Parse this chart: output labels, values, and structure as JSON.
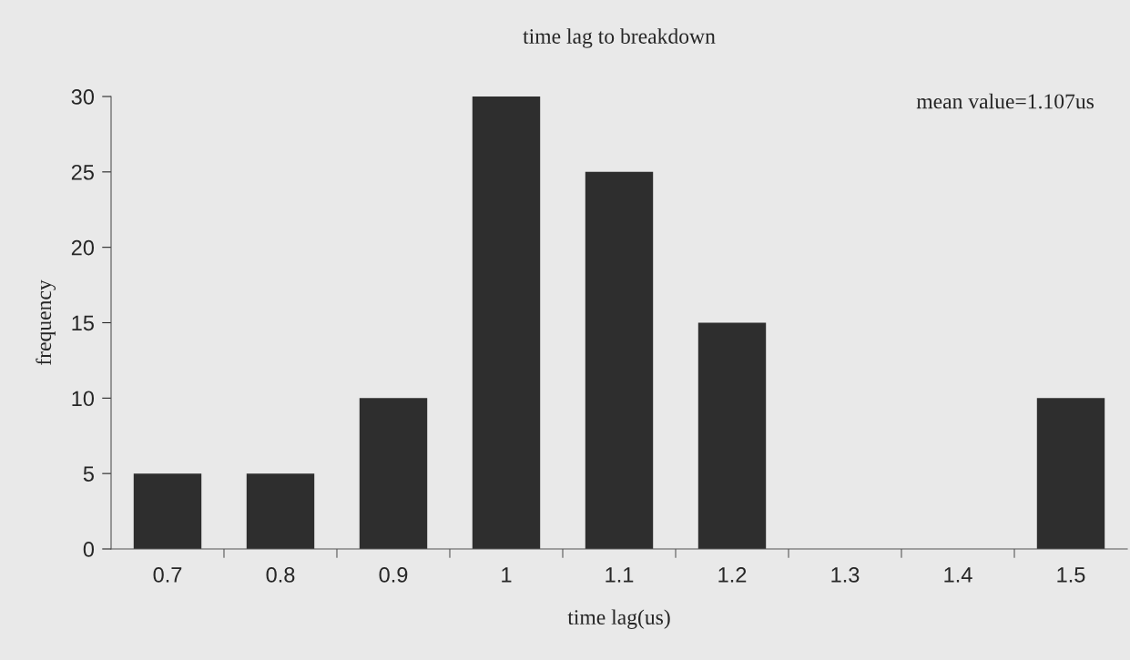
{
  "chart_data": {
    "type": "bar",
    "title": "time lag to breakdown",
    "xlabel": "time lag(us)",
    "ylabel": "frequency",
    "categories": [
      "0.7",
      "0.8",
      "0.9",
      "1",
      "1.1",
      "1.2",
      "1.3",
      "1.4",
      "1.5"
    ],
    "values": [
      5,
      5,
      10,
      30,
      25,
      15,
      0,
      0,
      10
    ],
    "color": "#2e2e2e",
    "ylim": [
      0,
      30
    ],
    "yticks": [
      0,
      5,
      10,
      15,
      20,
      25,
      30
    ],
    "grid": false,
    "legend": false,
    "annotations": [
      "mean value=1.107us"
    ]
  }
}
